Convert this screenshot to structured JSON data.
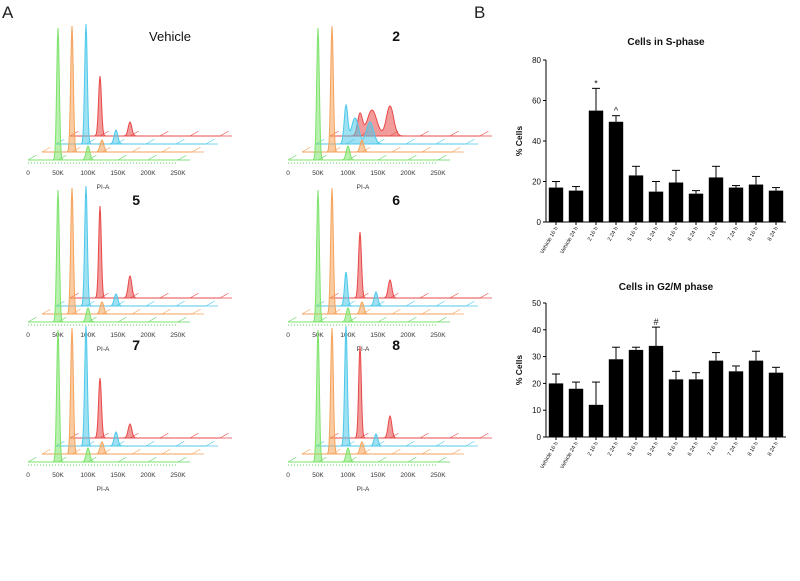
{
  "panel_labels": {
    "a": "A",
    "b": "B"
  },
  "histogram_panels": [
    {
      "title": "Vehicle"
    },
    {
      "title": "2"
    },
    {
      "title": "5"
    },
    {
      "title": "6"
    },
    {
      "title": "7"
    },
    {
      "title": "8"
    }
  ],
  "histogram_axis": {
    "xlabel": "PI-A",
    "ticks": [
      "0",
      "50K",
      "100K",
      "150K",
      "200K",
      "250K"
    ]
  },
  "colors": {
    "layer_green": "#7de36a",
    "layer_orange": "#f5a25a",
    "layer_blue": "#4cc8ea",
    "layer_red": "#e84848",
    "grid_green": "#5fd25f",
    "bar": "#000000"
  },
  "chart_data": [
    {
      "type": "bar",
      "title": "Cells in S-phase",
      "ylabel": "% Cells",
      "ylim": [
        0,
        80
      ],
      "yticks": [
        0,
        20,
        40,
        60,
        80
      ],
      "categories": [
        "Vehicle 16 h",
        "Vehicle 24 h",
        "2 16 h",
        "2 24 h",
        "5 16 h",
        "5 24 h",
        "6 16 h",
        "6 24 h",
        "7 16 h",
        "7 24 h",
        "8 16 h",
        "8 24 h"
      ],
      "values": [
        17,
        15.5,
        55,
        49.5,
        23,
        15,
        19.5,
        14,
        22,
        17,
        18.5,
        15.5
      ],
      "errors": [
        3,
        2,
        11,
        3,
        4.5,
        5,
        6,
        1.5,
        5.5,
        1,
        4,
        1.5
      ],
      "annotations": [
        {
          "category": "2 16 h",
          "text": "*"
        },
        {
          "category": "2 24 h",
          "text": "^"
        }
      ]
    },
    {
      "type": "bar",
      "title": "Cells in G2/M phase",
      "ylabel": "% Cells",
      "ylim": [
        0,
        50
      ],
      "yticks": [
        0,
        10,
        20,
        30,
        40,
        50
      ],
      "categories": [
        "Vehicle 16 h",
        "Vehicle 24 h",
        "2 16 h",
        "2 24 h",
        "5 16 h",
        "5 24 h",
        "6 16 h",
        "6 24 h",
        "7 16 h",
        "7 24 h",
        "8 16 h",
        "8 24 h"
      ],
      "values": [
        20,
        18,
        12,
        29,
        32.5,
        34,
        21.5,
        21.5,
        28.5,
        24.5,
        28.5,
        24
      ],
      "errors": [
        3.5,
        2.5,
        8.5,
        4.5,
        1,
        7,
        3,
        2.5,
        3,
        2,
        3.5,
        2
      ],
      "annotations": [
        {
          "category": "5 24 h",
          "text": "#"
        }
      ]
    }
  ]
}
